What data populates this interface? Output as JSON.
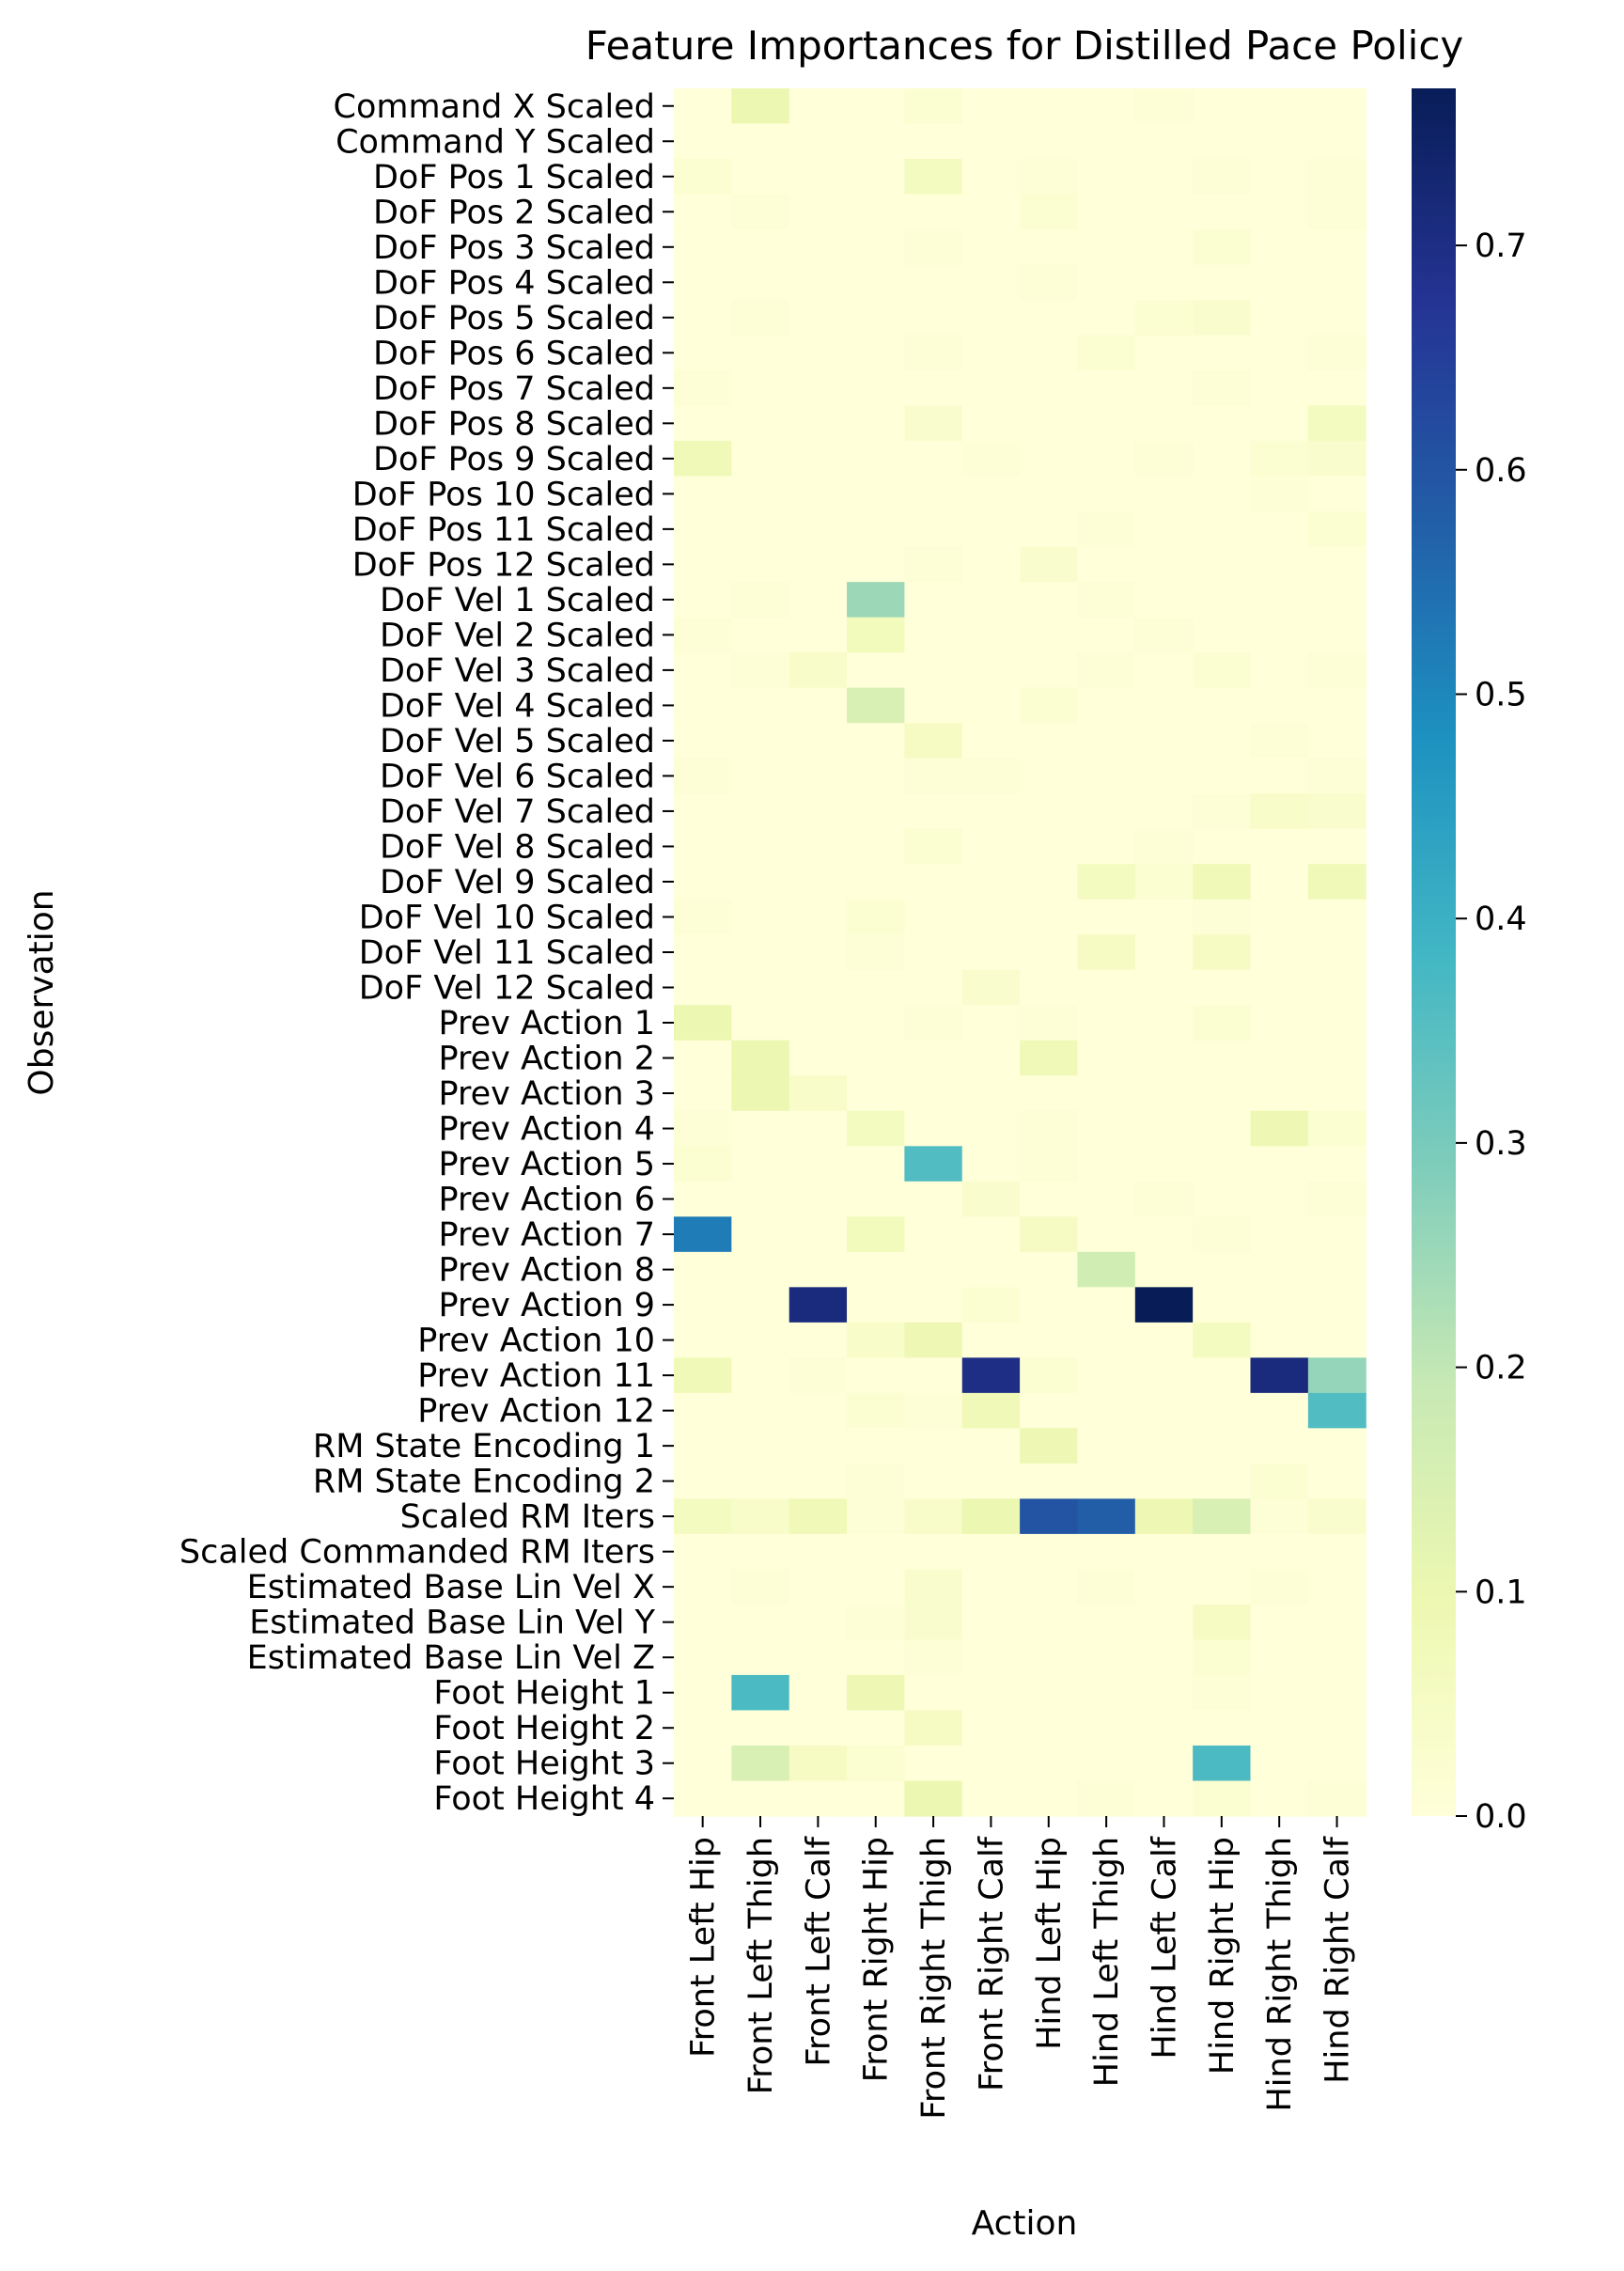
{
  "chart_data": {
    "type": "heatmap",
    "title": "Feature Importances for Distilled Pace Policy",
    "xlabel": "Action",
    "ylabel": "Observation",
    "colormap": "YlGnBu",
    "colorbar_range": [
      0.0,
      0.77
    ],
    "colorbar_ticks": [
      0.0,
      0.1,
      0.2,
      0.3,
      0.4,
      0.5,
      0.6,
      0.7
    ],
    "columns": [
      "Front Left Hip",
      "Front Left Thigh",
      "Front Left Calf",
      "Front Right Hip",
      "Front Right Thigh",
      "Front Right Calf",
      "Hind Left Hip",
      "Hind Left Thigh",
      "Hind Left Calf",
      "Hind Right Hip",
      "Hind Right Thigh",
      "Hind Right Calf"
    ],
    "rows": [
      "Command X Scaled",
      "Command Y Scaled",
      "DoF Pos 1 Scaled",
      "DoF Pos 2 Scaled",
      "DoF Pos 3 Scaled",
      "DoF Pos 4 Scaled",
      "DoF Pos 5 Scaled",
      "DoF Pos 6 Scaled",
      "DoF Pos 7 Scaled",
      "DoF Pos 8 Scaled",
      "DoF Pos 9 Scaled",
      "DoF Pos 10 Scaled",
      "DoF Pos 11 Scaled",
      "DoF Pos 12 Scaled",
      "DoF Vel 1 Scaled",
      "DoF Vel 2 Scaled",
      "DoF Vel 3 Scaled",
      "DoF Vel 4 Scaled",
      "DoF Vel 5 Scaled",
      "DoF Vel 6 Scaled",
      "DoF Vel 7 Scaled",
      "DoF Vel 8 Scaled",
      "DoF Vel 9 Scaled",
      "DoF Vel 10 Scaled",
      "DoF Vel 11 Scaled",
      "DoF Vel 12 Scaled",
      "Prev Action 1",
      "Prev Action 2",
      "Prev Action 3",
      "Prev Action 4",
      "Prev Action 5",
      "Prev Action 6",
      "Prev Action 7",
      "Prev Action 8",
      "Prev Action 9",
      "Prev Action 10",
      "Prev Action 11",
      "Prev Action 12",
      "RM State Encoding 1",
      "RM State Encoding 2",
      "Scaled RM Iters",
      "Scaled Commanded RM Iters",
      "Estimated Base Lin Vel X",
      "Estimated Base Lin Vel Y",
      "Estimated Base Lin Vel Z",
      "Foot Height 1",
      "Foot Height 2",
      "Foot Height 3",
      "Foot Height 4"
    ],
    "values": [
      [
        0.0,
        0.1,
        0.0,
        0.0,
        0.02,
        0.0,
        0.0,
        0.0,
        0.01,
        0.0,
        0.0,
        0.0
      ],
      [
        0.0,
        0.0,
        0.0,
        0.0,
        0.0,
        0.0,
        0.0,
        0.0,
        0.0,
        0.0,
        0.0,
        0.0
      ],
      [
        0.02,
        0.0,
        0.0,
        0.0,
        0.06,
        0.0,
        0.01,
        0.0,
        0.0,
        0.01,
        0.0,
        0.01
      ],
      [
        0.0,
        0.01,
        0.0,
        0.0,
        0.0,
        0.0,
        0.02,
        0.0,
        0.0,
        0.0,
        0.0,
        0.01
      ],
      [
        0.0,
        0.0,
        0.0,
        0.0,
        0.01,
        0.0,
        0.0,
        0.0,
        0.0,
        0.02,
        0.0,
        0.0
      ],
      [
        0.0,
        0.0,
        0.0,
        0.0,
        0.0,
        0.0,
        0.01,
        0.0,
        0.0,
        0.0,
        0.0,
        0.0
      ],
      [
        0.0,
        0.01,
        0.0,
        0.0,
        0.0,
        0.0,
        0.0,
        0.0,
        0.02,
        0.03,
        0.0,
        0.0
      ],
      [
        0.0,
        0.0,
        0.0,
        0.0,
        0.01,
        0.0,
        0.0,
        0.02,
        0.0,
        0.0,
        0.0,
        0.01
      ],
      [
        0.01,
        0.0,
        0.0,
        0.0,
        0.0,
        0.0,
        0.0,
        0.0,
        0.0,
        0.01,
        0.0,
        0.0
      ],
      [
        0.0,
        0.0,
        0.0,
        0.0,
        0.03,
        0.0,
        0.0,
        0.0,
        0.0,
        0.0,
        0.0,
        0.06
      ],
      [
        0.08,
        0.0,
        0.0,
        0.0,
        0.0,
        0.01,
        0.0,
        0.0,
        0.01,
        0.0,
        0.02,
        0.03
      ],
      [
        0.0,
        0.0,
        0.0,
        0.0,
        0.0,
        0.0,
        0.0,
        0.0,
        0.0,
        0.0,
        0.01,
        0.0
      ],
      [
        0.0,
        0.0,
        0.0,
        0.0,
        0.0,
        0.0,
        0.0,
        0.01,
        0.0,
        0.0,
        0.0,
        0.02
      ],
      [
        0.0,
        0.0,
        0.0,
        0.0,
        0.01,
        0.0,
        0.03,
        0.0,
        0.0,
        0.0,
        0.0,
        0.0
      ],
      [
        0.0,
        0.01,
        0.0,
        0.25,
        0.0,
        0.0,
        0.0,
        0.01,
        0.0,
        0.0,
        0.0,
        0.0
      ],
      [
        0.01,
        0.0,
        0.0,
        0.07,
        0.0,
        0.0,
        0.0,
        0.0,
        0.01,
        0.0,
        0.0,
        0.0
      ],
      [
        0.0,
        0.01,
        0.04,
        0.0,
        0.0,
        0.0,
        0.0,
        0.01,
        0.0,
        0.02,
        0.0,
        0.01
      ],
      [
        0.0,
        0.0,
        0.0,
        0.15,
        0.0,
        0.0,
        0.02,
        0.0,
        0.0,
        0.0,
        0.0,
        0.0
      ],
      [
        0.0,
        0.0,
        0.0,
        0.0,
        0.05,
        0.0,
        0.0,
        0.0,
        0.0,
        0.0,
        0.01,
        0.0
      ],
      [
        0.01,
        0.0,
        0.0,
        0.0,
        0.01,
        0.01,
        0.0,
        0.0,
        0.0,
        0.0,
        0.0,
        0.01
      ],
      [
        0.0,
        0.0,
        0.0,
        0.0,
        0.0,
        0.0,
        0.0,
        0.0,
        0.0,
        0.01,
        0.04,
        0.03
      ],
      [
        0.0,
        0.0,
        0.0,
        0.0,
        0.02,
        0.0,
        0.0,
        0.0,
        0.01,
        0.0,
        0.0,
        0.0
      ],
      [
        0.0,
        0.0,
        0.0,
        0.0,
        0.0,
        0.0,
        0.0,
        0.06,
        0.02,
        0.08,
        0.0,
        0.08
      ],
      [
        0.01,
        0.0,
        0.0,
        0.02,
        0.0,
        0.0,
        0.0,
        0.0,
        0.0,
        0.01,
        0.0,
        0.0
      ],
      [
        0.0,
        0.0,
        0.0,
        0.01,
        0.0,
        0.0,
        0.0,
        0.05,
        0.0,
        0.05,
        0.0,
        0.0
      ],
      [
        0.0,
        0.0,
        0.0,
        0.0,
        0.0,
        0.03,
        0.0,
        0.0,
        0.0,
        0.0,
        0.0,
        0.0
      ],
      [
        0.1,
        0.0,
        0.0,
        0.0,
        0.01,
        0.0,
        0.01,
        0.0,
        0.0,
        0.02,
        0.0,
        0.0
      ],
      [
        0.0,
        0.1,
        0.0,
        0.0,
        0.0,
        0.0,
        0.08,
        0.0,
        0.0,
        0.0,
        0.0,
        0.0
      ],
      [
        0.0,
        0.1,
        0.04,
        0.0,
        0.0,
        0.0,
        0.0,
        0.0,
        0.0,
        0.0,
        0.0,
        0.0
      ],
      [
        0.01,
        0.0,
        0.0,
        0.06,
        0.0,
        0.0,
        0.01,
        0.0,
        0.0,
        0.0,
        0.09,
        0.02
      ],
      [
        0.02,
        0.0,
        0.0,
        0.0,
        0.36,
        0.0,
        0.01,
        0.0,
        0.0,
        0.0,
        0.0,
        0.0
      ],
      [
        0.0,
        0.0,
        0.0,
        0.0,
        0.0,
        0.03,
        0.0,
        0.0,
        0.01,
        0.0,
        0.0,
        0.01
      ],
      [
        0.52,
        0.0,
        0.0,
        0.07,
        0.0,
        0.0,
        0.05,
        0.0,
        0.0,
        0.01,
        0.0,
        0.0
      ],
      [
        0.0,
        0.0,
        0.0,
        0.0,
        0.0,
        0.0,
        0.0,
        0.17,
        0.0,
        0.0,
        0.0,
        0.0
      ],
      [
        0.0,
        0.0,
        0.71,
        0.0,
        0.0,
        0.02,
        0.0,
        0.0,
        0.77,
        0.0,
        0.0,
        0.0
      ],
      [
        0.0,
        0.0,
        0.0,
        0.04,
        0.09,
        0.0,
        0.0,
        0.0,
        0.0,
        0.06,
        0.0,
        0.0
      ],
      [
        0.08,
        0.0,
        0.01,
        0.0,
        0.0,
        0.7,
        0.02,
        0.0,
        0.0,
        0.0,
        0.71,
        0.26
      ],
      [
        0.0,
        0.0,
        0.0,
        0.02,
        0.01,
        0.08,
        0.0,
        0.0,
        0.0,
        0.0,
        0.0,
        0.36
      ],
      [
        0.0,
        0.0,
        0.0,
        0.0,
        0.0,
        0.0,
        0.09,
        0.0,
        0.0,
        0.0,
        0.0,
        0.0
      ],
      [
        0.0,
        0.0,
        0.0,
        0.01,
        0.0,
        0.0,
        0.0,
        0.0,
        0.0,
        0.0,
        0.02,
        0.0
      ],
      [
        0.06,
        0.04,
        0.08,
        0.01,
        0.04,
        0.1,
        0.6,
        0.58,
        0.09,
        0.15,
        0.01,
        0.03
      ],
      [
        0.0,
        0.0,
        0.0,
        0.0,
        0.0,
        0.0,
        0.0,
        0.0,
        0.0,
        0.0,
        0.0,
        0.0
      ],
      [
        0.0,
        0.01,
        0.0,
        0.0,
        0.03,
        0.0,
        0.0,
        0.01,
        0.0,
        0.0,
        0.01,
        0.0
      ],
      [
        0.0,
        0.0,
        0.0,
        0.01,
        0.03,
        0.0,
        0.0,
        0.0,
        0.0,
        0.05,
        0.0,
        0.0
      ],
      [
        0.0,
        0.0,
        0.0,
        0.0,
        0.01,
        0.0,
        0.0,
        0.0,
        0.0,
        0.02,
        0.0,
        0.0
      ],
      [
        0.0,
        0.37,
        0.0,
        0.09,
        0.0,
        0.0,
        0.0,
        0.0,
        0.0,
        0.01,
        0.0,
        0.0
      ],
      [
        0.0,
        0.0,
        0.0,
        0.0,
        0.05,
        0.0,
        0.0,
        0.0,
        0.0,
        0.0,
        0.0,
        0.0
      ],
      [
        0.0,
        0.15,
        0.05,
        0.02,
        0.0,
        0.0,
        0.0,
        0.0,
        0.0,
        0.37,
        0.0,
        0.0
      ],
      [
        0.0,
        0.0,
        0.0,
        0.0,
        0.1,
        0.0,
        0.0,
        0.01,
        0.0,
        0.02,
        0.0,
        0.01
      ]
    ]
  }
}
